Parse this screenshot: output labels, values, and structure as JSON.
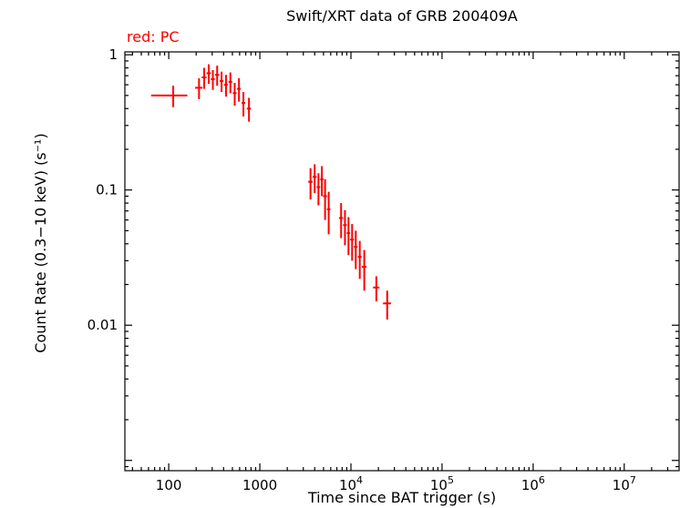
{
  "chart_data": {
    "type": "scatter",
    "title": "Swift/XRT data of GRB 200409A",
    "legend_label": "red: PC",
    "xlabel": "Time since BAT trigger (s)",
    "ylabel": "Count Rate (0.3−10 keV) (s⁻¹)",
    "xscale": "log",
    "yscale": "log",
    "grid": false,
    "xlim": [
      33,
      40000000
    ],
    "ylim": [
      0.00084,
      1.05
    ],
    "x_ticks": [
      {
        "v": 100,
        "label": "100"
      },
      {
        "v": 1000,
        "label": "1000"
      },
      {
        "v": 10000,
        "label": "10^4"
      },
      {
        "v": 100000,
        "label": "10^5"
      },
      {
        "v": 1000000,
        "label": "10^6"
      },
      {
        "v": 10000000,
        "label": "10^7"
      }
    ],
    "y_ticks": [
      {
        "v": 1,
        "label": "1"
      },
      {
        "v": 0.1,
        "label": "0.1"
      },
      {
        "v": 0.01,
        "label": "0.01"
      }
    ],
    "series": [
      {
        "name": "PC",
        "color": "#ff0000",
        "points": [
          {
            "t": 112,
            "terr": 48,
            "rate": 0.5,
            "rerr": 0.09
          },
          {
            "t": 215,
            "terr": 20,
            "rate": 0.57,
            "rerr": 0.1
          },
          {
            "t": 245,
            "terr": 15,
            "rate": 0.68,
            "rerr": 0.12
          },
          {
            "t": 275,
            "terr": 15,
            "rate": 0.73,
            "rerr": 0.12
          },
          {
            "t": 305,
            "terr": 15,
            "rate": 0.66,
            "rerr": 0.11
          },
          {
            "t": 340,
            "terr": 18,
            "rate": 0.71,
            "rerr": 0.12
          },
          {
            "t": 380,
            "terr": 18,
            "rate": 0.64,
            "rerr": 0.11
          },
          {
            "t": 425,
            "terr": 20,
            "rate": 0.6,
            "rerr": 0.11
          },
          {
            "t": 475,
            "terr": 22,
            "rate": 0.63,
            "rerr": 0.11
          },
          {
            "t": 530,
            "terr": 25,
            "rate": 0.52,
            "rerr": 0.1
          },
          {
            "t": 590,
            "terr": 28,
            "rate": 0.56,
            "rerr": 0.11
          },
          {
            "t": 660,
            "terr": 30,
            "rate": 0.44,
            "rerr": 0.09
          },
          {
            "t": 760,
            "terr": 40,
            "rate": 0.4,
            "rerr": 0.08
          },
          {
            "t": 3600,
            "terr": 200,
            "rate": 0.115,
            "rerr": 0.03
          },
          {
            "t": 4000,
            "terr": 200,
            "rate": 0.125,
            "rerr": 0.03
          },
          {
            "t": 4400,
            "terr": 200,
            "rate": 0.105,
            "rerr": 0.028
          },
          {
            "t": 4800,
            "terr": 200,
            "rate": 0.12,
            "rerr": 0.03
          },
          {
            "t": 5200,
            "terr": 250,
            "rate": 0.09,
            "rerr": 0.03
          },
          {
            "t": 5700,
            "terr": 250,
            "rate": 0.072,
            "rerr": 0.025
          },
          {
            "t": 7800,
            "terr": 400,
            "rate": 0.062,
            "rerr": 0.018
          },
          {
            "t": 8600,
            "terr": 400,
            "rate": 0.055,
            "rerr": 0.016
          },
          {
            "t": 9400,
            "terr": 400,
            "rate": 0.048,
            "rerr": 0.015
          },
          {
            "t": 10300,
            "terr": 500,
            "rate": 0.043,
            "rerr": 0.013
          },
          {
            "t": 11300,
            "terr": 500,
            "rate": 0.038,
            "rerr": 0.012
          },
          {
            "t": 12500,
            "terr": 600,
            "rate": 0.032,
            "rerr": 0.01
          },
          {
            "t": 14000,
            "terr": 800,
            "rate": 0.027,
            "rerr": 0.009
          },
          {
            "t": 19000,
            "terr": 1500,
            "rate": 0.019,
            "rerr": 0.004
          },
          {
            "t": 25000,
            "terr": 2500,
            "rate": 0.0145,
            "rerr": 0.0035
          }
        ]
      }
    ]
  }
}
